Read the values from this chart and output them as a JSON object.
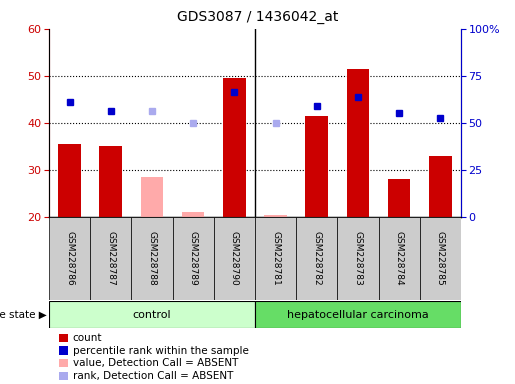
{
  "title": "GDS3087 / 1436042_at",
  "samples": [
    "GSM228786",
    "GSM228787",
    "GSM228788",
    "GSM228789",
    "GSM228790",
    "GSM228781",
    "GSM228782",
    "GSM228783",
    "GSM228784",
    "GSM228785"
  ],
  "count_values": [
    35.5,
    35.0,
    null,
    null,
    49.5,
    null,
    41.5,
    51.5,
    28.0,
    33.0
  ],
  "count_absent": [
    null,
    null,
    28.5,
    21.0,
    null,
    20.5,
    null,
    null,
    null,
    null
  ],
  "percentile_values": [
    44.5,
    42.5,
    null,
    null,
    46.5,
    null,
    43.5,
    45.5,
    42.0,
    41.0
  ],
  "percentile_absent": [
    null,
    null,
    42.5,
    40.0,
    null,
    40.0,
    null,
    null,
    null,
    null
  ],
  "ylim_left": [
    20,
    60
  ],
  "ylim_right": [
    0,
    100
  ],
  "yticks_left": [
    20,
    30,
    40,
    50,
    60
  ],
  "yticks_right": [
    0,
    25,
    50,
    75,
    100
  ],
  "ytick_labels_right": [
    "0",
    "25",
    "50",
    "75",
    "100%"
  ],
  "bar_color_red": "#cc0000",
  "bar_color_pink": "#ffaaaa",
  "marker_color_blue": "#0000cc",
  "marker_color_lightblue": "#aaaaee",
  "control_label": "control",
  "carcinoma_label": "hepatocellular carcinoma",
  "disease_state_label": "disease state",
  "control_bg": "#ccffcc",
  "carcinoma_bg": "#66dd66",
  "label_bg": "#cccccc",
  "legend_items": [
    {
      "label": "count",
      "color": "#cc0000"
    },
    {
      "label": "percentile rank within the sample",
      "color": "#0000cc"
    },
    {
      "label": "value, Detection Call = ABSENT",
      "color": "#ffaaaa"
    },
    {
      "label": "rank, Detection Call = ABSENT",
      "color": "#aaaaee"
    }
  ],
  "background_plot": "#ffffff",
  "n_control": 5,
  "n_total": 10
}
